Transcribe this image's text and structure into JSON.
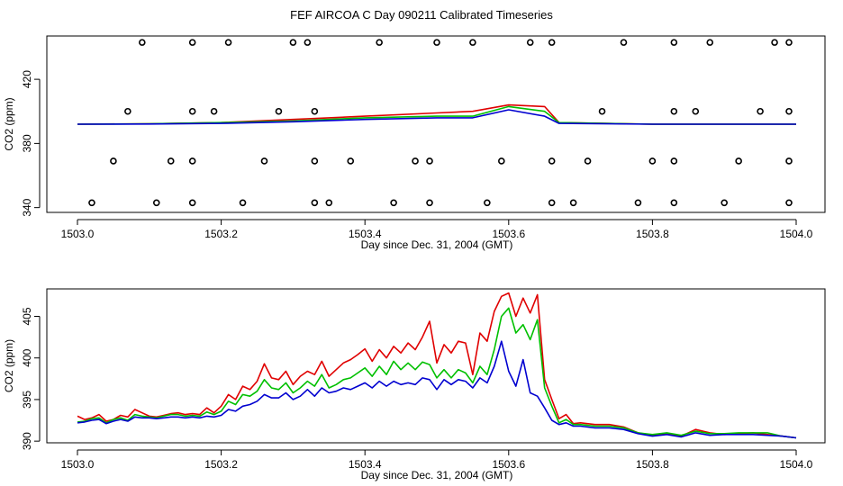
{
  "title": "FEF AIRCOA C  Day 090211  Calibrated Timeseries",
  "colors": {
    "red": "#e00000",
    "green": "#00c000",
    "blue": "#0000d0",
    "axis": "#000000"
  },
  "chart_data": [
    {
      "type": "line+scatter",
      "xlabel": "Day since Dec. 31, 2004 (GMT)",
      "ylabel": "CO2 (ppm)",
      "xlim": [
        1503.0,
        1504.0
      ],
      "ylim": [
        337,
        447
      ],
      "xticks": [
        1503.0,
        1503.2,
        1503.4,
        1503.6,
        1503.8,
        1504.0
      ],
      "xtick_labels": [
        "1503.0",
        "1503.2",
        "1503.4",
        "1503.6",
        "1503.8",
        "1504.0"
      ],
      "yticks": [
        340,
        380,
        420
      ],
      "ytick_labels": [
        "340",
        "380",
        "420"
      ],
      "calibration_points": {
        "x": [
          1503.09,
          1503.16,
          1503.21,
          1503.3,
          1503.32,
          1503.42,
          1503.5,
          1503.55,
          1503.63,
          1503.66,
          1503.76,
          1503.83,
          1503.88,
          1503.97,
          1503.99,
          1503.07,
          1503.16,
          1503.19,
          1503.28,
          1503.33,
          1503.73,
          1503.83,
          1503.86,
          1503.95,
          1503.99,
          1503.05,
          1503.13,
          1503.16,
          1503.26,
          1503.33,
          1503.38,
          1503.47,
          1503.49,
          1503.59,
          1503.66,
          1503.71,
          1503.8,
          1503.83,
          1503.92,
          1503.99,
          1503.02,
          1503.11,
          1503.16,
          1503.23,
          1503.33,
          1503.35,
          1503.44,
          1503.49,
          1503.57,
          1503.66,
          1503.69,
          1503.78,
          1503.83,
          1503.9,
          1503.99
        ],
        "y": [
          443,
          443,
          443,
          443,
          443,
          443,
          443,
          443,
          443,
          443,
          443,
          443,
          443,
          443,
          443,
          400,
          400,
          400,
          400,
          400,
          400,
          400,
          400,
          400,
          400,
          369,
          369,
          369,
          369,
          369,
          369,
          369,
          369,
          369,
          369,
          369,
          369,
          369,
          369,
          369,
          343,
          343,
          343,
          343,
          343,
          343,
          343,
          343,
          343,
          343,
          343,
          343,
          343,
          343,
          343
        ]
      },
      "series": [
        {
          "name": "red",
          "x": [
            1503.0,
            1503.1,
            1503.2,
            1503.3,
            1503.4,
            1503.5,
            1503.55,
            1503.6,
            1503.65,
            1503.67,
            1503.8,
            1504.0
          ],
          "y": [
            392,
            392.3,
            393,
            395,
            397,
            399,
            400,
            404,
            403,
            393,
            392,
            392
          ]
        },
        {
          "name": "green",
          "x": [
            1503.0,
            1503.1,
            1503.2,
            1503.3,
            1503.4,
            1503.5,
            1503.55,
            1503.6,
            1503.65,
            1503.67,
            1503.8,
            1504.0
          ],
          "y": [
            392,
            392.2,
            393,
            394,
            396,
            397,
            397,
            403,
            400,
            393,
            392,
            392
          ]
        },
        {
          "name": "blue",
          "x": [
            1503.0,
            1503.1,
            1503.2,
            1503.3,
            1503.4,
            1503.5,
            1503.55,
            1503.6,
            1503.65,
            1503.67,
            1503.8,
            1504.0
          ],
          "y": [
            392,
            392.1,
            392.5,
            393.5,
            395,
            396,
            396,
            401,
            397,
            392.5,
            392,
            392
          ]
        }
      ]
    },
    {
      "type": "line",
      "xlabel": "Day since Dec. 31, 2004 (GMT)",
      "ylabel": "CO2 (ppm)",
      "xlim": [
        1503.0,
        1504.0
      ],
      "ylim": [
        389.8,
        408.3
      ],
      "xticks": [
        1503.0,
        1503.2,
        1503.4,
        1503.6,
        1503.8,
        1504.0
      ],
      "xtick_labels": [
        "1503.0",
        "1503.2",
        "1503.4",
        "1503.6",
        "1503.8",
        "1504.0"
      ],
      "yticks": [
        390,
        395,
        400,
        405
      ],
      "ytick_labels": [
        "390",
        "395",
        "400",
        "405"
      ],
      "series": [
        {
          "name": "red",
          "x": [
            1503.0,
            1503.01,
            1503.02,
            1503.03,
            1503.04,
            1503.05,
            1503.06,
            1503.07,
            1503.08,
            1503.09,
            1503.1,
            1503.11,
            1503.12,
            1503.13,
            1503.14,
            1503.15,
            1503.16,
            1503.17,
            1503.18,
            1503.19,
            1503.2,
            1503.21,
            1503.22,
            1503.23,
            1503.24,
            1503.25,
            1503.26,
            1503.27,
            1503.28,
            1503.29,
            1503.3,
            1503.31,
            1503.32,
            1503.33,
            1503.34,
            1503.35,
            1503.36,
            1503.37,
            1503.38,
            1503.39,
            1503.4,
            1503.41,
            1503.42,
            1503.43,
            1503.44,
            1503.45,
            1503.46,
            1503.47,
            1503.48,
            1503.49,
            1503.5,
            1503.51,
            1503.52,
            1503.53,
            1503.54,
            1503.55,
            1503.56,
            1503.57,
            1503.58,
            1503.59,
            1503.6,
            1503.61,
            1503.62,
            1503.63,
            1503.64,
            1503.65,
            1503.66,
            1503.67,
            1503.68,
            1503.69,
            1503.7,
            1503.72,
            1503.74,
            1503.76,
            1503.78,
            1503.8,
            1503.82,
            1503.84,
            1503.86,
            1503.88,
            1503.9,
            1503.92,
            1503.94,
            1503.96,
            1503.98,
            1504.0
          ],
          "y": [
            393.0,
            392.6,
            392.8,
            393.2,
            392.4,
            392.6,
            393.1,
            392.9,
            393.8,
            393.4,
            393.0,
            392.9,
            393.1,
            393.3,
            393.4,
            393.2,
            393.3,
            393.2,
            394.0,
            393.4,
            394.2,
            395.6,
            395.0,
            396.6,
            396.2,
            397.2,
            399.3,
            397.6,
            397.4,
            398.4,
            396.8,
            397.8,
            398.4,
            398.0,
            399.6,
            397.8,
            398.6,
            399.4,
            399.8,
            400.4,
            401.1,
            399.6,
            401.0,
            400.0,
            401.4,
            400.6,
            401.8,
            401.0,
            402.5,
            404.4,
            399.4,
            401.6,
            400.6,
            402.0,
            401.8,
            398.0,
            403.0,
            402.0,
            405.6,
            407.4,
            407.8,
            405.0,
            407.2,
            405.4,
            407.6,
            397.4,
            395.0,
            392.7,
            393.2,
            392.1,
            392.2,
            392.0,
            392.0,
            391.7,
            391.0,
            390.7,
            390.9,
            390.6,
            391.4,
            391.0,
            390.8,
            390.9,
            391.0,
            390.8,
            390.6,
            390.4
          ]
        },
        {
          "name": "green",
          "x": [
            1503.0,
            1503.01,
            1503.02,
            1503.03,
            1503.04,
            1503.05,
            1503.06,
            1503.07,
            1503.08,
            1503.09,
            1503.1,
            1503.11,
            1503.12,
            1503.13,
            1503.14,
            1503.15,
            1503.16,
            1503.17,
            1503.18,
            1503.19,
            1503.2,
            1503.21,
            1503.22,
            1503.23,
            1503.24,
            1503.25,
            1503.26,
            1503.27,
            1503.28,
            1503.29,
            1503.3,
            1503.31,
            1503.32,
            1503.33,
            1503.34,
            1503.35,
            1503.36,
            1503.37,
            1503.38,
            1503.39,
            1503.4,
            1503.41,
            1503.42,
            1503.43,
            1503.44,
            1503.45,
            1503.46,
            1503.47,
            1503.48,
            1503.49,
            1503.5,
            1503.51,
            1503.52,
            1503.53,
            1503.54,
            1503.55,
            1503.56,
            1503.57,
            1503.58,
            1503.59,
            1503.6,
            1503.61,
            1503.62,
            1503.63,
            1503.64,
            1503.65,
            1503.66,
            1503.67,
            1503.68,
            1503.69,
            1503.7,
            1503.72,
            1503.74,
            1503.76,
            1503.78,
            1503.8,
            1503.82,
            1503.84,
            1503.86,
            1503.88,
            1503.9,
            1503.92,
            1503.94,
            1503.96,
            1503.98,
            1504.0
          ],
          "y": [
            392.3,
            392.4,
            392.7,
            392.8,
            392.2,
            392.6,
            392.8,
            392.5,
            393.2,
            393.0,
            392.9,
            392.8,
            393.0,
            393.2,
            393.2,
            393.0,
            393.1,
            393.0,
            393.5,
            393.2,
            393.6,
            394.8,
            394.4,
            395.6,
            395.4,
            396.0,
            397.4,
            396.4,
            396.2,
            397.0,
            395.8,
            396.4,
            397.2,
            396.6,
            398.0,
            396.4,
            396.8,
            397.4,
            397.6,
            398.2,
            398.8,
            397.8,
            399.0,
            398.0,
            399.6,
            398.6,
            399.4,
            398.6,
            399.5,
            399.2,
            397.6,
            398.6,
            397.6,
            398.6,
            398.2,
            397.0,
            399.0,
            398.0,
            401.0,
            405.0,
            406.0,
            403.0,
            404.0,
            402.2,
            404.6,
            396.4,
            394.2,
            392.2,
            392.6,
            392.0,
            392.0,
            391.8,
            391.8,
            391.6,
            391.0,
            390.8,
            391.0,
            390.7,
            391.2,
            390.9,
            390.9,
            391.0,
            391.0,
            391.0,
            390.6,
            390.4
          ]
        },
        {
          "name": "blue",
          "x": [
            1503.0,
            1503.01,
            1503.02,
            1503.03,
            1503.04,
            1503.05,
            1503.06,
            1503.07,
            1503.08,
            1503.09,
            1503.1,
            1503.11,
            1503.12,
            1503.13,
            1503.14,
            1503.15,
            1503.16,
            1503.17,
            1503.18,
            1503.19,
            1503.2,
            1503.21,
            1503.22,
            1503.23,
            1503.24,
            1503.25,
            1503.26,
            1503.27,
            1503.28,
            1503.29,
            1503.3,
            1503.31,
            1503.32,
            1503.33,
            1503.34,
            1503.35,
            1503.36,
            1503.37,
            1503.38,
            1503.39,
            1503.4,
            1503.41,
            1503.42,
            1503.43,
            1503.44,
            1503.45,
            1503.46,
            1503.47,
            1503.48,
            1503.49,
            1503.5,
            1503.51,
            1503.52,
            1503.53,
            1503.54,
            1503.55,
            1503.56,
            1503.57,
            1503.58,
            1503.59,
            1503.6,
            1503.61,
            1503.62,
            1503.63,
            1503.64,
            1503.65,
            1503.66,
            1503.67,
            1503.68,
            1503.69,
            1503.7,
            1503.72,
            1503.74,
            1503.76,
            1503.78,
            1503.8,
            1503.82,
            1503.84,
            1503.86,
            1503.88,
            1503.9,
            1503.92,
            1503.94,
            1503.96,
            1503.98,
            1504.0
          ],
          "y": [
            392.2,
            392.3,
            392.5,
            392.6,
            392.1,
            392.4,
            392.6,
            392.4,
            392.9,
            392.8,
            392.8,
            392.7,
            392.8,
            392.9,
            392.9,
            392.8,
            392.9,
            392.8,
            393.0,
            392.9,
            393.1,
            393.8,
            393.6,
            394.2,
            394.4,
            394.8,
            395.6,
            395.2,
            395.2,
            395.8,
            395.0,
            395.4,
            396.2,
            395.4,
            396.4,
            395.8,
            396.0,
            396.4,
            396.2,
            396.6,
            397.0,
            396.4,
            397.2,
            396.6,
            397.2,
            396.8,
            397.0,
            396.8,
            397.6,
            397.4,
            396.2,
            397.4,
            396.8,
            397.4,
            397.2,
            396.4,
            397.6,
            397.0,
            399.0,
            402.0,
            398.4,
            396.6,
            399.8,
            395.8,
            395.4,
            394.0,
            392.5,
            392.0,
            392.2,
            391.8,
            391.8,
            391.6,
            391.6,
            391.4,
            390.9,
            390.6,
            390.8,
            390.5,
            391.0,
            390.7,
            390.8,
            390.8,
            390.8,
            390.7,
            390.6,
            390.4
          ]
        }
      ]
    }
  ]
}
